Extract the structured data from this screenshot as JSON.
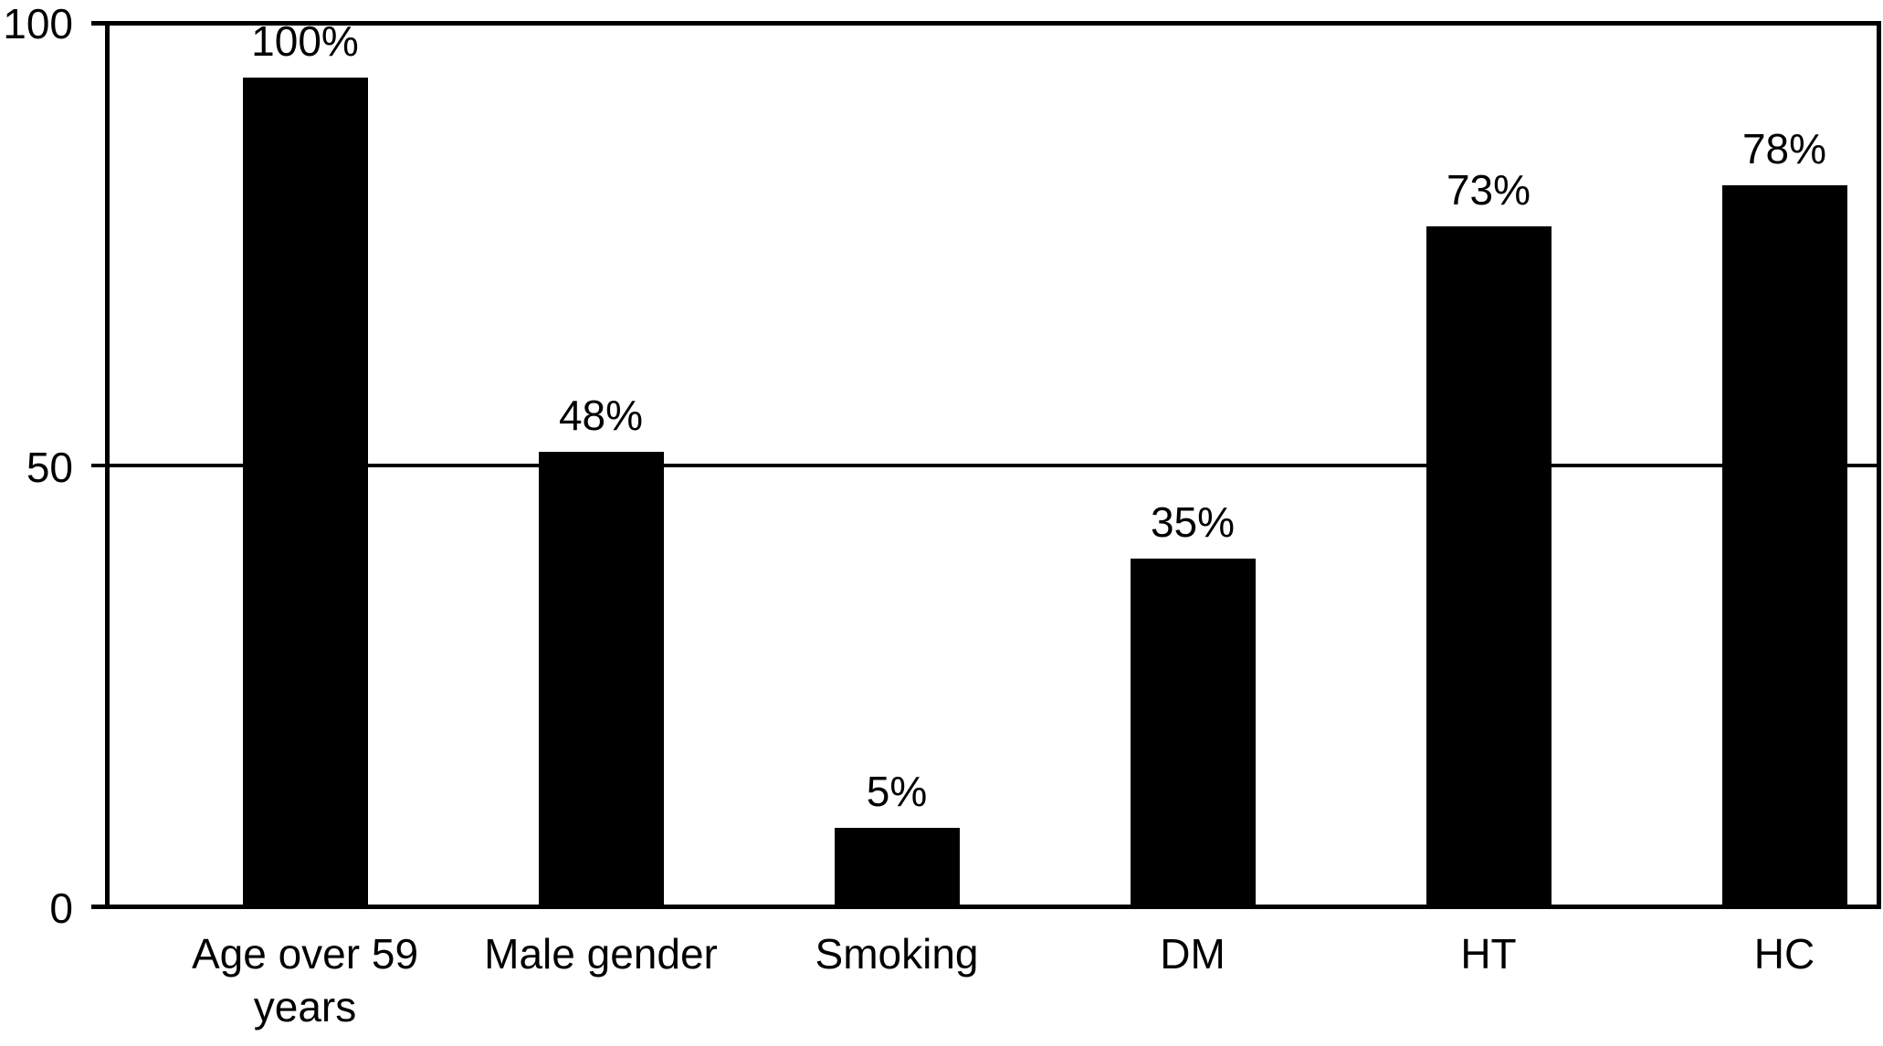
{
  "figure": {
    "background_color": "#ffffff",
    "bar_color": "#000000",
    "axis_color": "#000000",
    "text_color": "#000000"
  },
  "y_axis": {
    "tick_labels_top_to_bottom": [
      "100",
      "50",
      "0"
    ]
  },
  "chart_data": {
    "type": "bar",
    "title": "",
    "xlabel": "",
    "ylabel": "",
    "ylim": [
      0,
      100
    ],
    "yticks": [
      0,
      50,
      100
    ],
    "gridlines_at": [
      50
    ],
    "legend_position": "none",
    "bar_color": "#000000",
    "categories": [
      "Age over 59 years",
      "Male gender",
      "Smoking",
      "DM",
      "HT",
      "HC"
    ],
    "values": [
      100,
      48,
      5,
      35,
      73,
      78
    ],
    "bar_labels": [
      "100%",
      "48%",
      "5%",
      "35%",
      "73%",
      "78%"
    ],
    "bars": [
      {
        "category_display": "Age over 59\nyears",
        "label": "100%",
        "value": 100,
        "drawn_height_units": 93.8
      },
      {
        "category_display": "Male gender",
        "label": "48%",
        "value": 48,
        "drawn_height_units": 51.4
      },
      {
        "category_display": "Smoking",
        "label": "5%",
        "value": 5,
        "drawn_height_units": 8.9
      },
      {
        "category_display": "DM",
        "label": "35%",
        "value": 35,
        "drawn_height_units": 39.4
      },
      {
        "category_display": "HT",
        "label": "73%",
        "value": 73,
        "drawn_height_units": 77.0
      },
      {
        "category_display": "HC",
        "label": "78%",
        "value": 78,
        "drawn_height_units": 81.6
      }
    ]
  }
}
